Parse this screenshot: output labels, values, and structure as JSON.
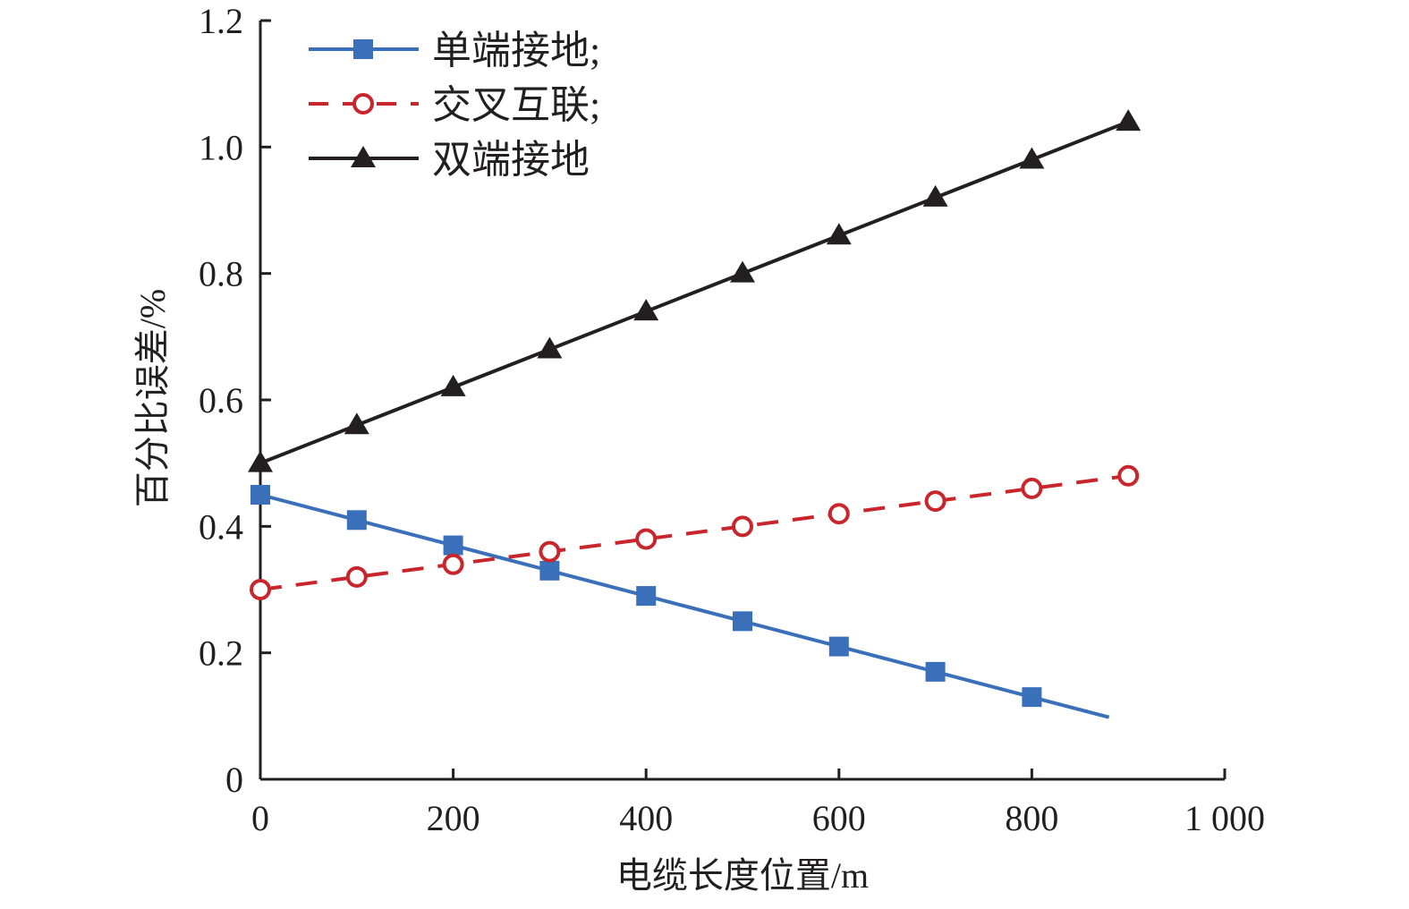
{
  "chart_data": {
    "type": "line",
    "title": "",
    "xlabel": "电缆长度位置/m",
    "ylabel": "百分比误差/%",
    "xlim": [
      0,
      1000
    ],
    "ylim": [
      0,
      1.2
    ],
    "xticks": [
      0,
      200,
      400,
      600,
      800,
      1000
    ],
    "xtick_labels": [
      "0",
      "200",
      "400",
      "600",
      "800",
      "1 000"
    ],
    "yticks": [
      0,
      0.2,
      0.4,
      0.6,
      0.8,
      1.0,
      1.2
    ],
    "ytick_labels": [
      "0",
      "0.2",
      "0.4",
      "0.6",
      "0.8",
      "1.0",
      "1.2"
    ],
    "grid": false,
    "legend_position": "top-left",
    "series": [
      {
        "name": "单端接地;",
        "color": "#3a6fba",
        "marker": "square",
        "dash": "solid",
        "x": [
          0,
          100,
          200,
          300,
          400,
          500,
          600,
          700,
          800
        ],
        "y": [
          0.45,
          0.41,
          0.37,
          0.33,
          0.29,
          0.25,
          0.21,
          0.17,
          0.13
        ],
        "line_extends_to": [
          880,
          0.098
        ]
      },
      {
        "name": "交叉互联;",
        "color": "#c8262c",
        "marker": "open-circle",
        "dash": "dashed",
        "x": [
          0,
          100,
          200,
          300,
          400,
          500,
          600,
          700,
          800,
          900
        ],
        "y": [
          0.3,
          0.32,
          0.34,
          0.36,
          0.38,
          0.4,
          0.42,
          0.44,
          0.46,
          0.48
        ]
      },
      {
        "name": "双端接地",
        "color": "#231f20",
        "marker": "triangle",
        "dash": "solid",
        "x": [
          0,
          100,
          200,
          300,
          400,
          500,
          600,
          700,
          800,
          900
        ],
        "y": [
          0.5,
          0.56,
          0.62,
          0.68,
          0.74,
          0.8,
          0.86,
          0.92,
          0.98,
          1.04
        ]
      }
    ]
  }
}
